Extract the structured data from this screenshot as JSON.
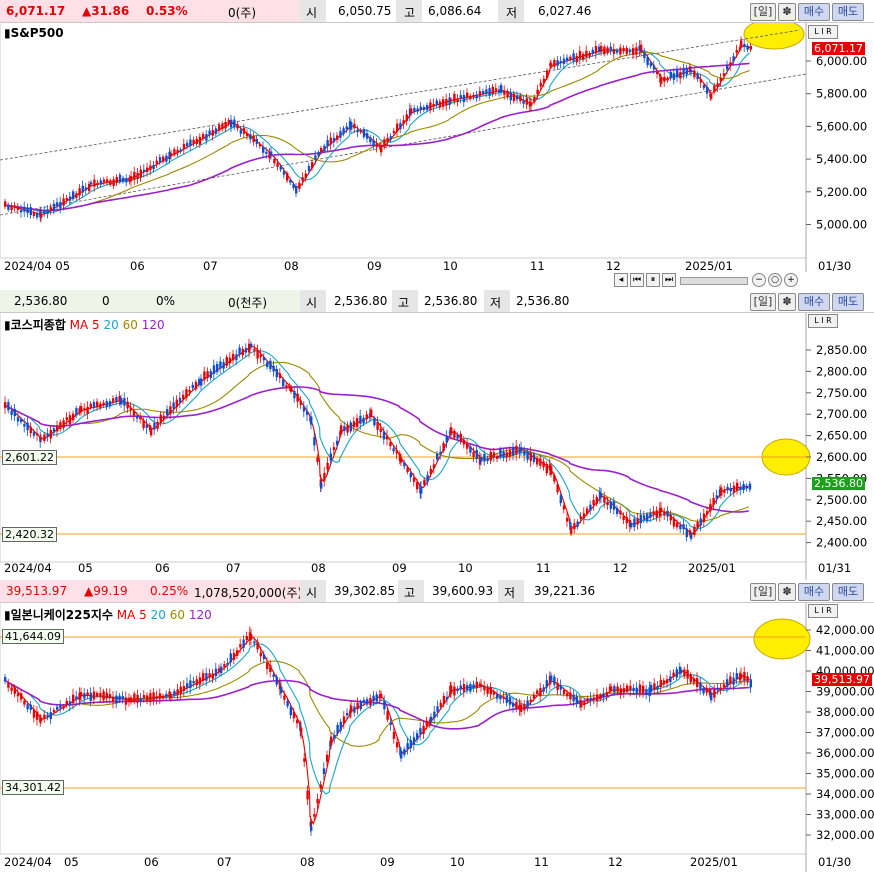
{
  "panel1": {
    "header": {
      "price": "6,071.17",
      "change": "▲31.86",
      "pct": "0.53%",
      "volume": "0(주)",
      "open_label": "시",
      "open": "6,050.75",
      "high_label": "고",
      "high": "6,086.64",
      "low_label": "저",
      "low": "6,027.46"
    },
    "legend": "S&P500",
    "yticks": [
      "6,000.00",
      "5,800.00",
      "5,600.00",
      "5,400.00",
      "5,200.00",
      "5,000.00"
    ],
    "xticks": [
      "2024/04 05",
      "06",
      "07",
      "08",
      "09",
      "10",
      "11",
      "12",
      "2025/01",
      "01/30"
    ],
    "current_tag": "6,071.17"
  },
  "panel2": {
    "header": {
      "price": "2,536.80",
      "change": "0",
      "pct": "0%",
      "volume": "0(천주)",
      "open_label": "시",
      "open": "2,536.80",
      "high_label": "고",
      "high": "2,536.80",
      "low_label": "저",
      "low": "2,536.80"
    },
    "legend": {
      "name": "코스피종합",
      "ma": "MA",
      "ma5": "5",
      "ma20": "20",
      "ma60": "60",
      "ma120": "120"
    },
    "yticks": [
      "2,850.00",
      "2,800.00",
      "2,750.00",
      "2,700.00",
      "2,650.00",
      "2,600.00",
      "2,550.00",
      "2,500.00",
      "2,450.00",
      "2,400.00"
    ],
    "xticks": [
      "2024/04",
      "05",
      "06",
      "07",
      "08",
      "09",
      "10",
      "11",
      "12",
      "2025/01",
      "01/31"
    ],
    "level_hi": "2,601.22",
    "level_lo": "2,420.32",
    "current_tag": "2,536.80"
  },
  "panel3": {
    "header": {
      "price": "39,513.97",
      "change": "▲99.19",
      "pct": "0.25%",
      "volume": "1,078,520,000(주)",
      "open_label": "시",
      "open": "39,302.85",
      "high_label": "고",
      "high": "39,600.93",
      "low_label": "저",
      "low": "39,221.36"
    },
    "legend": {
      "name": "일본니케이225지수",
      "ma": "MA",
      "ma5": "5",
      "ma20": "20",
      "ma60": "60",
      "ma120": "120"
    },
    "yticks": [
      "42,000.00",
      "41,000.00",
      "40,000.00",
      "39,000.00",
      "38,000.00",
      "37,000.00",
      "36,000.00",
      "35,000.00",
      "34,000.00",
      "33,000.00",
      "32,000.00"
    ],
    "xticks": [
      "2024/04",
      "05",
      "06",
      "07",
      "08",
      "09",
      "10",
      "11",
      "12",
      "2025/01",
      "01/30"
    ],
    "level_hi": "41,644.09",
    "level_lo": "34,301.42",
    "current_tag": "39,513.97"
  },
  "buttons": {
    "day": "[일]",
    "gear": "✽",
    "buy": "매수",
    "sell": "매도",
    "lir": "L I R"
  },
  "colors": {
    "up": "#e60000",
    "down": "#0a4fd0",
    "ma5": "#e60000",
    "ma20": "#16a6c8",
    "ma60": "#9c8a00",
    "ma120": "#9a20c8",
    "hline": "#f0a020",
    "highlight": "#ffee00"
  }
}
